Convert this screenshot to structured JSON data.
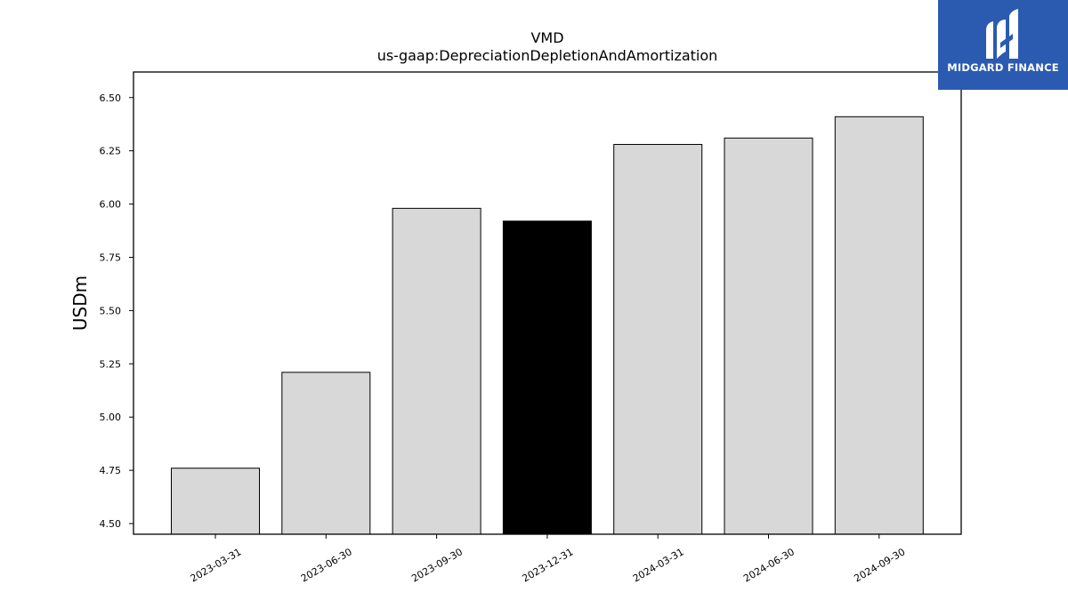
{
  "brand": {
    "name": "MIDGARD FINANCE",
    "background_color": "#2b5bb0"
  },
  "chart_data": {
    "type": "bar",
    "title": "VMD",
    "subtitle": "us-gaap:DepreciationDepletionAndAmortization",
    "ylabel": "USDm",
    "xlabel": "",
    "categories": [
      "2023-03-31",
      "2023-06-30",
      "2023-09-30",
      "2023-12-31",
      "2024-03-31",
      "2024-06-30",
      "2024-09-30"
    ],
    "values": [
      4.76,
      5.21,
      5.98,
      5.92,
      6.28,
      6.31,
      6.41
    ],
    "highlight_index": 3,
    "bar_color": "#d8d8d8",
    "highlight_color": "#000000",
    "ylim": [
      4.45,
      6.62
    ],
    "yticks": [
      "4.50",
      "4.75",
      "5.00",
      "5.25",
      "5.50",
      "5.75",
      "6.00",
      "6.25",
      "6.50"
    ],
    "grid": false,
    "legend": "none"
  }
}
